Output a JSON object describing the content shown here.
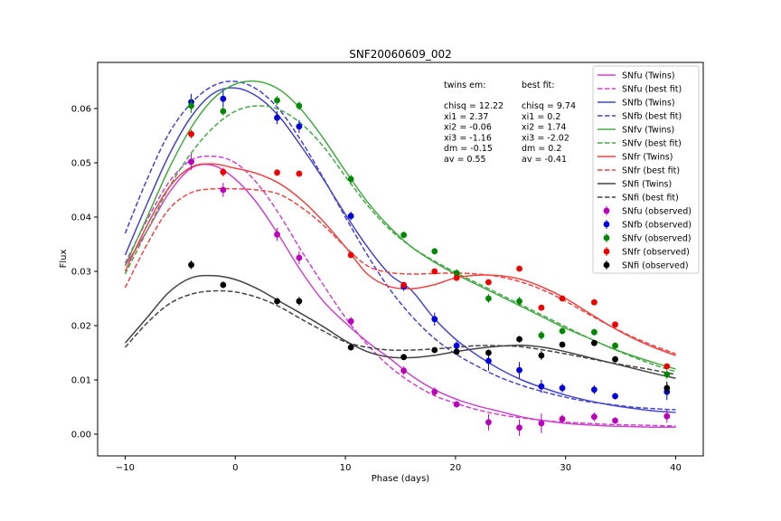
{
  "chart_data": {
    "type": "line",
    "title": "SNF20060609_002",
    "xlabel": "Phase (days)",
    "ylabel": "Flux",
    "xlim": [
      -12.5,
      42.5
    ],
    "ylim": [
      -0.004,
      0.0685
    ],
    "xticks": [
      -10,
      0,
      10,
      20,
      30,
      40
    ],
    "xtick_labels": [
      "−10",
      "0",
      "10",
      "20",
      "30",
      "40"
    ],
    "yticks": [
      0.0,
      0.01,
      0.02,
      0.03,
      0.04,
      0.05,
      0.06
    ],
    "ytick_labels": [
      "0.00",
      "0.01",
      "0.02",
      "0.03",
      "0.04",
      "0.05",
      "0.06"
    ],
    "grid": false,
    "legend_position": "top-right",
    "annotations": {
      "twins_header": "twins em:",
      "twins_lines": [
        "chisq = 12.22",
        "xi1 = 2.37",
        "xi2 = -0.06",
        "xi3 = -1.16",
        "dm = -0.15",
        "av = 0.55"
      ],
      "best_header": "best fit:",
      "best_lines": [
        "chisq = 9.74",
        "xi1 = 0.2",
        "xi2 = 1.74",
        "xi3 = -2.02",
        "dm = 0.2",
        "av = -0.41"
      ]
    },
    "legend": [
      "SNfu (Twins)",
      "SNfu (best fit)",
      "SNfb (Twins)",
      "SNfb (best fit)",
      "SNfv (Twins)",
      "SNfv (best fit)",
      "SNfr (Twins)",
      "SNfr (best fit)",
      "SNfi (Twins)",
      "SNfi (best fit)",
      "SNfu (observed)",
      "SNfb (observed)",
      "SNfv (observed)",
      "SNfr (observed)",
      "SNfi (observed)"
    ],
    "curves": [
      {
        "name": "SNfu (Twins)",
        "color": "#cc44cc",
        "dash": false,
        "x": [
          -10,
          -8,
          -6,
          -4,
          -2,
          0,
          2,
          4,
          6,
          8,
          10,
          12,
          14,
          16,
          18,
          20,
          22,
          24,
          26,
          28,
          30,
          32,
          34,
          36,
          38,
          40
        ],
        "y": [
          0.031,
          0.0375,
          0.0445,
          0.049,
          0.0495,
          0.047,
          0.0425,
          0.0365,
          0.03,
          0.0245,
          0.0205,
          0.017,
          0.014,
          0.0108,
          0.0083,
          0.0065,
          0.0052,
          0.0042,
          0.0032,
          0.0025,
          0.002,
          0.0017,
          0.0015,
          0.0014,
          0.0013,
          0.0013
        ]
      },
      {
        "name": "SNfu (best fit)",
        "color": "#cc44cc",
        "dash": true,
        "x": [
          -10,
          -8,
          -6,
          -4,
          -2,
          0,
          2,
          4,
          6,
          8,
          10,
          12,
          14,
          16,
          18,
          20,
          22,
          24,
          26,
          28,
          30,
          32,
          34,
          36,
          38,
          40
        ],
        "y": [
          0.0315,
          0.0395,
          0.0465,
          0.0505,
          0.0512,
          0.05,
          0.0462,
          0.0405,
          0.0338,
          0.0275,
          0.0215,
          0.0165,
          0.0125,
          0.0095,
          0.0072,
          0.0057,
          0.0045,
          0.0036,
          0.003,
          0.0025,
          0.0022,
          0.002,
          0.0018,
          0.0017,
          0.0016,
          0.0015
        ]
      },
      {
        "name": "SNfb (Twins)",
        "color": "#4444cc",
        "dash": false,
        "x": [
          -10,
          -8,
          -6,
          -4,
          -2,
          0,
          2,
          4,
          6,
          8,
          10,
          12,
          14,
          16,
          18,
          20,
          22,
          24,
          26,
          28,
          30,
          32,
          34,
          36,
          38,
          40
        ],
        "y": [
          0.033,
          0.0425,
          0.0515,
          0.0585,
          0.0628,
          0.0638,
          0.0622,
          0.0585,
          0.053,
          0.047,
          0.0405,
          0.0345,
          0.0295,
          0.0265,
          0.0215,
          0.0175,
          0.0145,
          0.012,
          0.01,
          0.0085,
          0.0072,
          0.0062,
          0.0054,
          0.0048,
          0.0043,
          0.004
        ]
      },
      {
        "name": "SNfb (best fit)",
        "color": "#4444cc",
        "dash": true,
        "x": [
          -10,
          -8,
          -6,
          -4,
          -2,
          0,
          2,
          4,
          6,
          8,
          10,
          12,
          14,
          16,
          18,
          20,
          22,
          24,
          26,
          28,
          30,
          32,
          34,
          36,
          38,
          40
        ],
        "y": [
          0.037,
          0.047,
          0.0555,
          0.061,
          0.0642,
          0.065,
          0.0635,
          0.0598,
          0.054,
          0.0472,
          0.04,
          0.033,
          0.0268,
          0.0218,
          0.0178,
          0.0148,
          0.0125,
          0.0105,
          0.009,
          0.0078,
          0.0068,
          0.006,
          0.0055,
          0.005,
          0.0047,
          0.0045
        ]
      },
      {
        "name": "SNfv (Twins)",
        "color": "#44aa44",
        "dash": false,
        "x": [
          -10,
          -8,
          -6,
          -4,
          -2,
          0,
          2,
          4,
          6,
          8,
          10,
          12,
          14,
          16,
          18,
          20,
          22,
          24,
          26,
          28,
          30,
          32,
          34,
          36,
          38,
          40
        ],
        "y": [
          0.031,
          0.04,
          0.049,
          0.0565,
          0.0618,
          0.0645,
          0.065,
          0.0635,
          0.0598,
          0.0545,
          0.0485,
          0.0428,
          0.0382,
          0.0345,
          0.0318,
          0.0295,
          0.0275,
          0.0255,
          0.0235,
          0.0215,
          0.0195,
          0.0178,
          0.016,
          0.0145,
          0.0132,
          0.012
        ]
      },
      {
        "name": "SNfv (best fit)",
        "color": "#44aa44",
        "dash": true,
        "x": [
          -10,
          -8,
          -6,
          -4,
          -2,
          0,
          2,
          4,
          6,
          8,
          10,
          12,
          14,
          16,
          18,
          20,
          22,
          24,
          26,
          28,
          30,
          32,
          34,
          36,
          38,
          40
        ],
        "y": [
          0.0295,
          0.0375,
          0.0455,
          0.0518,
          0.0565,
          0.0595,
          0.0605,
          0.0598,
          0.0572,
          0.053,
          0.0475,
          0.0422,
          0.0378,
          0.0345,
          0.032,
          0.0298,
          0.0278,
          0.0258,
          0.0238,
          0.0218,
          0.0198,
          0.0178,
          0.016,
          0.0143,
          0.0128,
          0.0115
        ]
      },
      {
        "name": "SNfr (Twins)",
        "color": "#ee4444",
        "dash": false,
        "x": [
          -10,
          -8,
          -6,
          -4,
          -2,
          0,
          2,
          4,
          6,
          8,
          10,
          12,
          14,
          16,
          18,
          20,
          22,
          24,
          26,
          28,
          30,
          32,
          34,
          36,
          38,
          40
        ],
        "y": [
          0.03,
          0.0385,
          0.0455,
          0.0492,
          0.0498,
          0.049,
          0.048,
          0.0462,
          0.0432,
          0.0392,
          0.0345,
          0.0295,
          0.0272,
          0.0268,
          0.0275,
          0.0288,
          0.0293,
          0.0292,
          0.0285,
          0.027,
          0.025,
          0.0225,
          0.02,
          0.0178,
          0.016,
          0.0145
        ]
      },
      {
        "name": "SNfr (best fit)",
        "color": "#ee4444",
        "dash": true,
        "x": [
          -10,
          -8,
          -6,
          -4,
          -2,
          0,
          2,
          4,
          6,
          8,
          10,
          12,
          14,
          16,
          18,
          20,
          22,
          24,
          26,
          28,
          30,
          32,
          34,
          36,
          38,
          40
        ],
        "y": [
          0.027,
          0.035,
          0.0415,
          0.0445,
          0.0452,
          0.0452,
          0.045,
          0.0442,
          0.0418,
          0.0385,
          0.0345,
          0.031,
          0.0298,
          0.0295,
          0.0296,
          0.0297,
          0.0295,
          0.029,
          0.028,
          0.0265,
          0.0245,
          0.0222,
          0.02,
          0.018,
          0.0163,
          0.0148
        ]
      },
      {
        "name": "SNfi (Twins)",
        "color": "#444444",
        "dash": false,
        "x": [
          -10,
          -8,
          -6,
          -4,
          -2,
          0,
          2,
          4,
          6,
          8,
          10,
          12,
          14,
          16,
          18,
          20,
          22,
          24,
          26,
          28,
          30,
          32,
          34,
          36,
          38,
          40
        ],
        "y": [
          0.0168,
          0.0215,
          0.0262,
          0.0288,
          0.0292,
          0.0285,
          0.0268,
          0.0245,
          0.0222,
          0.0198,
          0.0172,
          0.0152,
          0.0142,
          0.0141,
          0.0145,
          0.0152,
          0.0158,
          0.0162,
          0.0164,
          0.016,
          0.0152,
          0.0142,
          0.0132,
          0.0122,
          0.0112,
          0.0103
        ]
      },
      {
        "name": "SNfi (best fit)",
        "color": "#444444",
        "dash": true,
        "x": [
          -10,
          -8,
          -6,
          -4,
          -2,
          0,
          2,
          4,
          6,
          8,
          10,
          12,
          14,
          16,
          18,
          20,
          22,
          24,
          26,
          28,
          30,
          32,
          34,
          36,
          38,
          40
        ],
        "y": [
          0.016,
          0.0205,
          0.024,
          0.0258,
          0.0264,
          0.0262,
          0.0252,
          0.0235,
          0.0212,
          0.019,
          0.017,
          0.016,
          0.0155,
          0.0155,
          0.0157,
          0.016,
          0.0163,
          0.0163,
          0.0161,
          0.0155,
          0.0148,
          0.014,
          0.0132,
          0.0125,
          0.0118,
          0.011
        ]
      }
    ],
    "observed": [
      {
        "name": "SNfu (observed)",
        "color": "#bb00bb",
        "x": [
          -4,
          -1.1,
          3.8,
          5.8,
          10.5,
          15.3,
          18.1,
          20.1,
          23,
          25.8,
          27.8,
          29.7,
          32.6,
          34.5,
          39.2
        ],
        "y": [
          0.0502,
          0.045,
          0.0368,
          0.0325,
          0.0208,
          0.0117,
          0.0078,
          0.0055,
          0.0022,
          0.0012,
          0.002,
          0.0028,
          0.0032,
          0.0025,
          0.0033
        ],
        "err": [
          0.0015,
          0.0013,
          0.0012,
          0.0012,
          0.0008,
          0.0008,
          0.0008,
          0.0006,
          0.0015,
          0.0015,
          0.0018,
          0.0008,
          0.0008,
          0.0006,
          0.0012
        ]
      },
      {
        "name": "SNfb (observed)",
        "color": "#0000dd",
        "x": [
          -4,
          -1.1,
          3.8,
          5.8,
          10.5,
          15.3,
          18.1,
          20.1,
          23,
          25.8,
          27.8,
          29.7,
          32.6,
          34.5,
          39.2
        ],
        "y": [
          0.0612,
          0.0618,
          0.0583,
          0.0567,
          0.0402,
          0.0272,
          0.0212,
          0.0163,
          0.0135,
          0.0118,
          0.0088,
          0.0085,
          0.0082,
          0.007,
          0.0078
        ],
        "err": [
          0.0015,
          0.0015,
          0.0012,
          0.0012,
          0.0008,
          0.0008,
          0.0012,
          0.0008,
          0.0018,
          0.0015,
          0.0012,
          0.0008,
          0.0008,
          0.0006,
          0.0015
        ]
      },
      {
        "name": "SNfv (observed)",
        "color": "#008800",
        "x": [
          -4,
          -1.1,
          3.8,
          5.8,
          10.5,
          15.3,
          18.1,
          20.1,
          23,
          25.8,
          27.8,
          29.7,
          32.6,
          34.5,
          39.2
        ],
        "y": [
          0.0605,
          0.0595,
          0.0615,
          0.0605,
          0.047,
          0.0367,
          0.0337,
          0.0297,
          0.025,
          0.0245,
          0.0182,
          0.019,
          0.0188,
          0.0163,
          0.011
        ],
        "err": [
          0.0013,
          0.0008,
          0.0008,
          0.0008,
          0.0008,
          0.0006,
          0.0006,
          0.0006,
          0.0008,
          0.0008,
          0.0008,
          0.0006,
          0.0006,
          0.0006,
          0.0008
        ]
      },
      {
        "name": "SNfr (observed)",
        "color": "#ee0000",
        "x": [
          -4,
          -1.1,
          3.8,
          5.8,
          10.5,
          15.3,
          18.1,
          20.1,
          23,
          25.8,
          27.8,
          29.7,
          32.6,
          34.5,
          39.2
        ],
        "y": [
          0.0553,
          0.0483,
          0.0482,
          0.048,
          0.033,
          0.0275,
          0.03,
          0.0288,
          0.028,
          0.0305,
          0.0233,
          0.025,
          0.0243,
          0.0202,
          0.0125
        ],
        "err": [
          0.0008,
          0.0008,
          0.0006,
          0.0006,
          0.0005,
          0.0005,
          0.0005,
          0.0005,
          0.0005,
          0.0005,
          0.0005,
          0.0004,
          0.0004,
          0.0004,
          0.0005
        ]
      },
      {
        "name": "SNfi (observed)",
        "color": "#000000",
        "x": [
          -4,
          -1.1,
          3.8,
          5.8,
          10.5,
          15.3,
          18.1,
          20.1,
          23,
          25.8,
          27.8,
          29.7,
          32.6,
          34.5,
          39.2
        ],
        "y": [
          0.0312,
          0.0275,
          0.0245,
          0.0245,
          0.016,
          0.0142,
          0.0155,
          0.0152,
          0.015,
          0.0175,
          0.0145,
          0.0165,
          0.0168,
          0.0138,
          0.0085
        ],
        "err": [
          0.0008,
          0.0006,
          0.0006,
          0.0008,
          0.0006,
          0.0005,
          0.0005,
          0.0005,
          0.0006,
          0.0006,
          0.0008,
          0.0005,
          0.0005,
          0.0005,
          0.0012
        ]
      }
    ]
  }
}
